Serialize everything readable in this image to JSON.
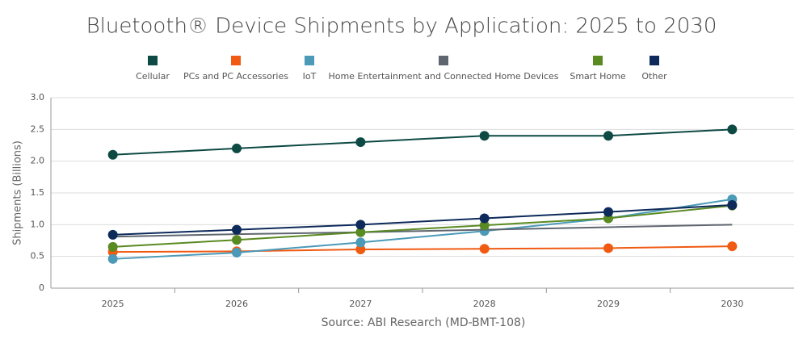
{
  "chart_data": {
    "type": "line",
    "title": "Bluetooth® Device Shipments by Application: 2025 to 2030",
    "y_label": "Shipments (Billions)",
    "source": "Source: ABI Research (MD-BMT-108)",
    "categories": [
      "2025",
      "2026",
      "2027",
      "2028",
      "2029",
      "2030"
    ],
    "series": [
      {
        "name": "Cellular",
        "color": "#0d4a44",
        "values": [
          2.1,
          2.2,
          2.3,
          2.4,
          2.4,
          2.5
        ]
      },
      {
        "name": "PCs and PC Accessories",
        "color": "#f05a12",
        "values": [
          0.57,
          0.58,
          0.61,
          0.62,
          0.63,
          0.66
        ]
      },
      {
        "name": "IoT",
        "color": "#4a9ab8",
        "values": [
          0.46,
          0.56,
          0.72,
          0.9,
          1.1,
          1.4
        ]
      },
      {
        "name": "Home Entertainment and Connected Home Devices",
        "color": "#5f6670",
        "markers": false,
        "values": [
          0.81,
          0.85,
          0.88,
          0.92,
          0.96,
          1.0
        ]
      },
      {
        "name": "Smart Home",
        "color": "#5a8a22",
        "values": [
          0.65,
          0.76,
          0.88,
          0.99,
          1.1,
          1.3
        ]
      },
      {
        "name": "Other",
        "color": "#0d2a5a",
        "values": [
          0.84,
          0.92,
          1.0,
          1.1,
          1.2,
          1.31
        ]
      }
    ],
    "ylim": [
      0,
      3
    ],
    "yticks": [
      0,
      0.5,
      {
        "value": 1,
        "label": "1.0"
      },
      1.5,
      {
        "value": 2,
        "label": "2.0"
      },
      2.5,
      {
        "value": 3,
        "label": "3.0"
      }
    ],
    "grid": true
  }
}
